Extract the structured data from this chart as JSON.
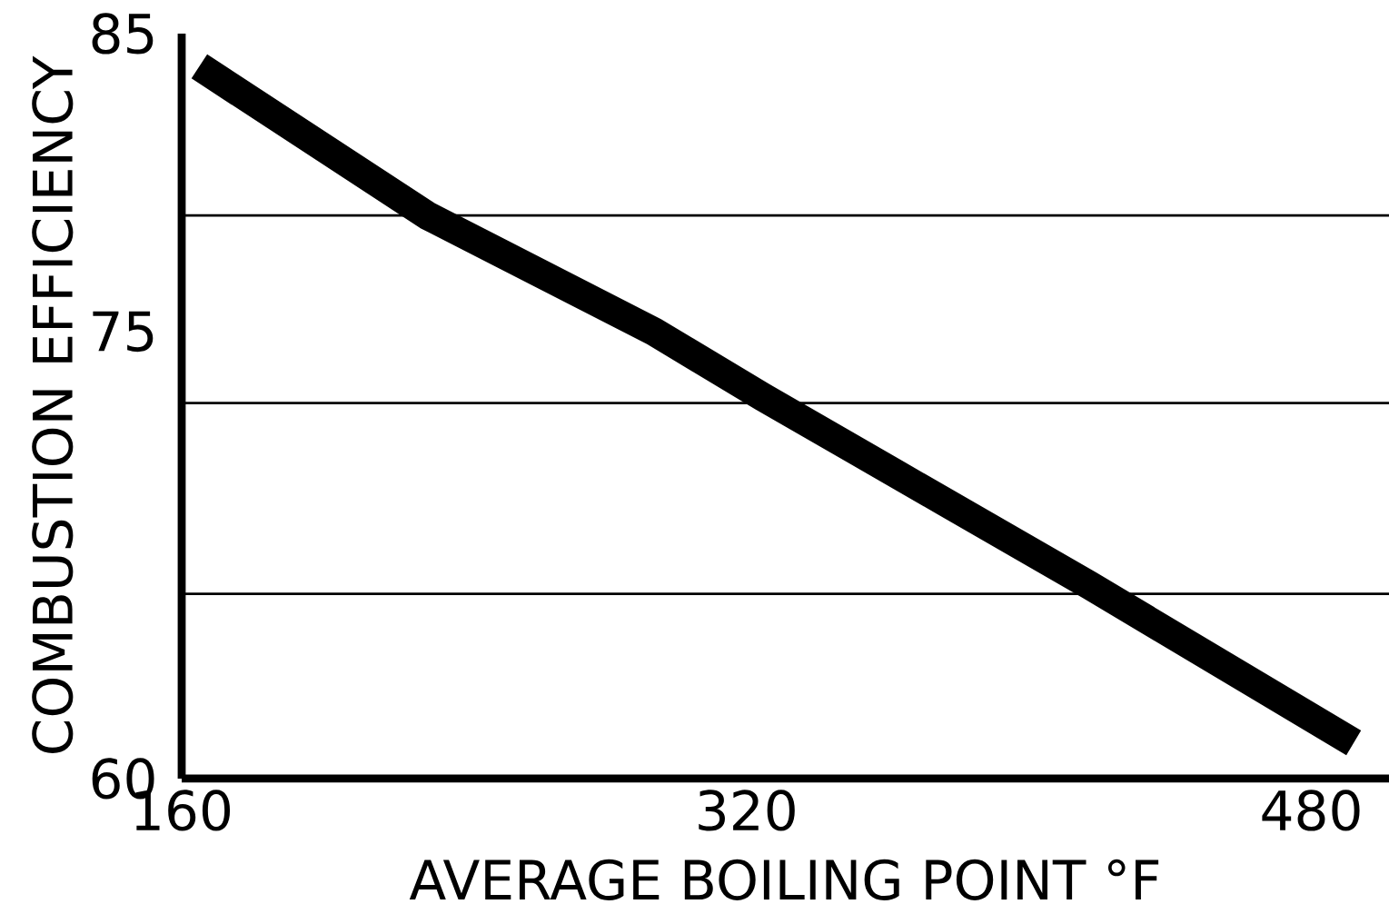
{
  "chart_data": {
    "type": "line",
    "xlabel": "AVERAGE BOILING POINT °F",
    "ylabel": "COMBUSTION EFFICIENCY",
    "x": [
      165,
      229.5,
      293.8,
      324.7,
      376,
      417,
      492
    ],
    "values": [
      83.9,
      78.9,
      75.0,
      72.8,
      69.3,
      66.5,
      61.2
    ],
    "color": "#000000",
    "marker": "none",
    "line_style": "solid",
    "xlim": [
      160,
      502
    ],
    "xticks": [
      160,
      320,
      480
    ],
    "ylim": [
      60,
      85
    ],
    "yticks": [
      60,
      75,
      85
    ],
    "ref_lines": [
      {
        "axis": "y",
        "value": 78.9,
        "color": "#000000"
      },
      {
        "axis": "y",
        "value": 72.6,
        "color": "#000000"
      },
      {
        "axis": "y",
        "value": 66.2,
        "color": "#000000"
      }
    ],
    "grid": false
  }
}
